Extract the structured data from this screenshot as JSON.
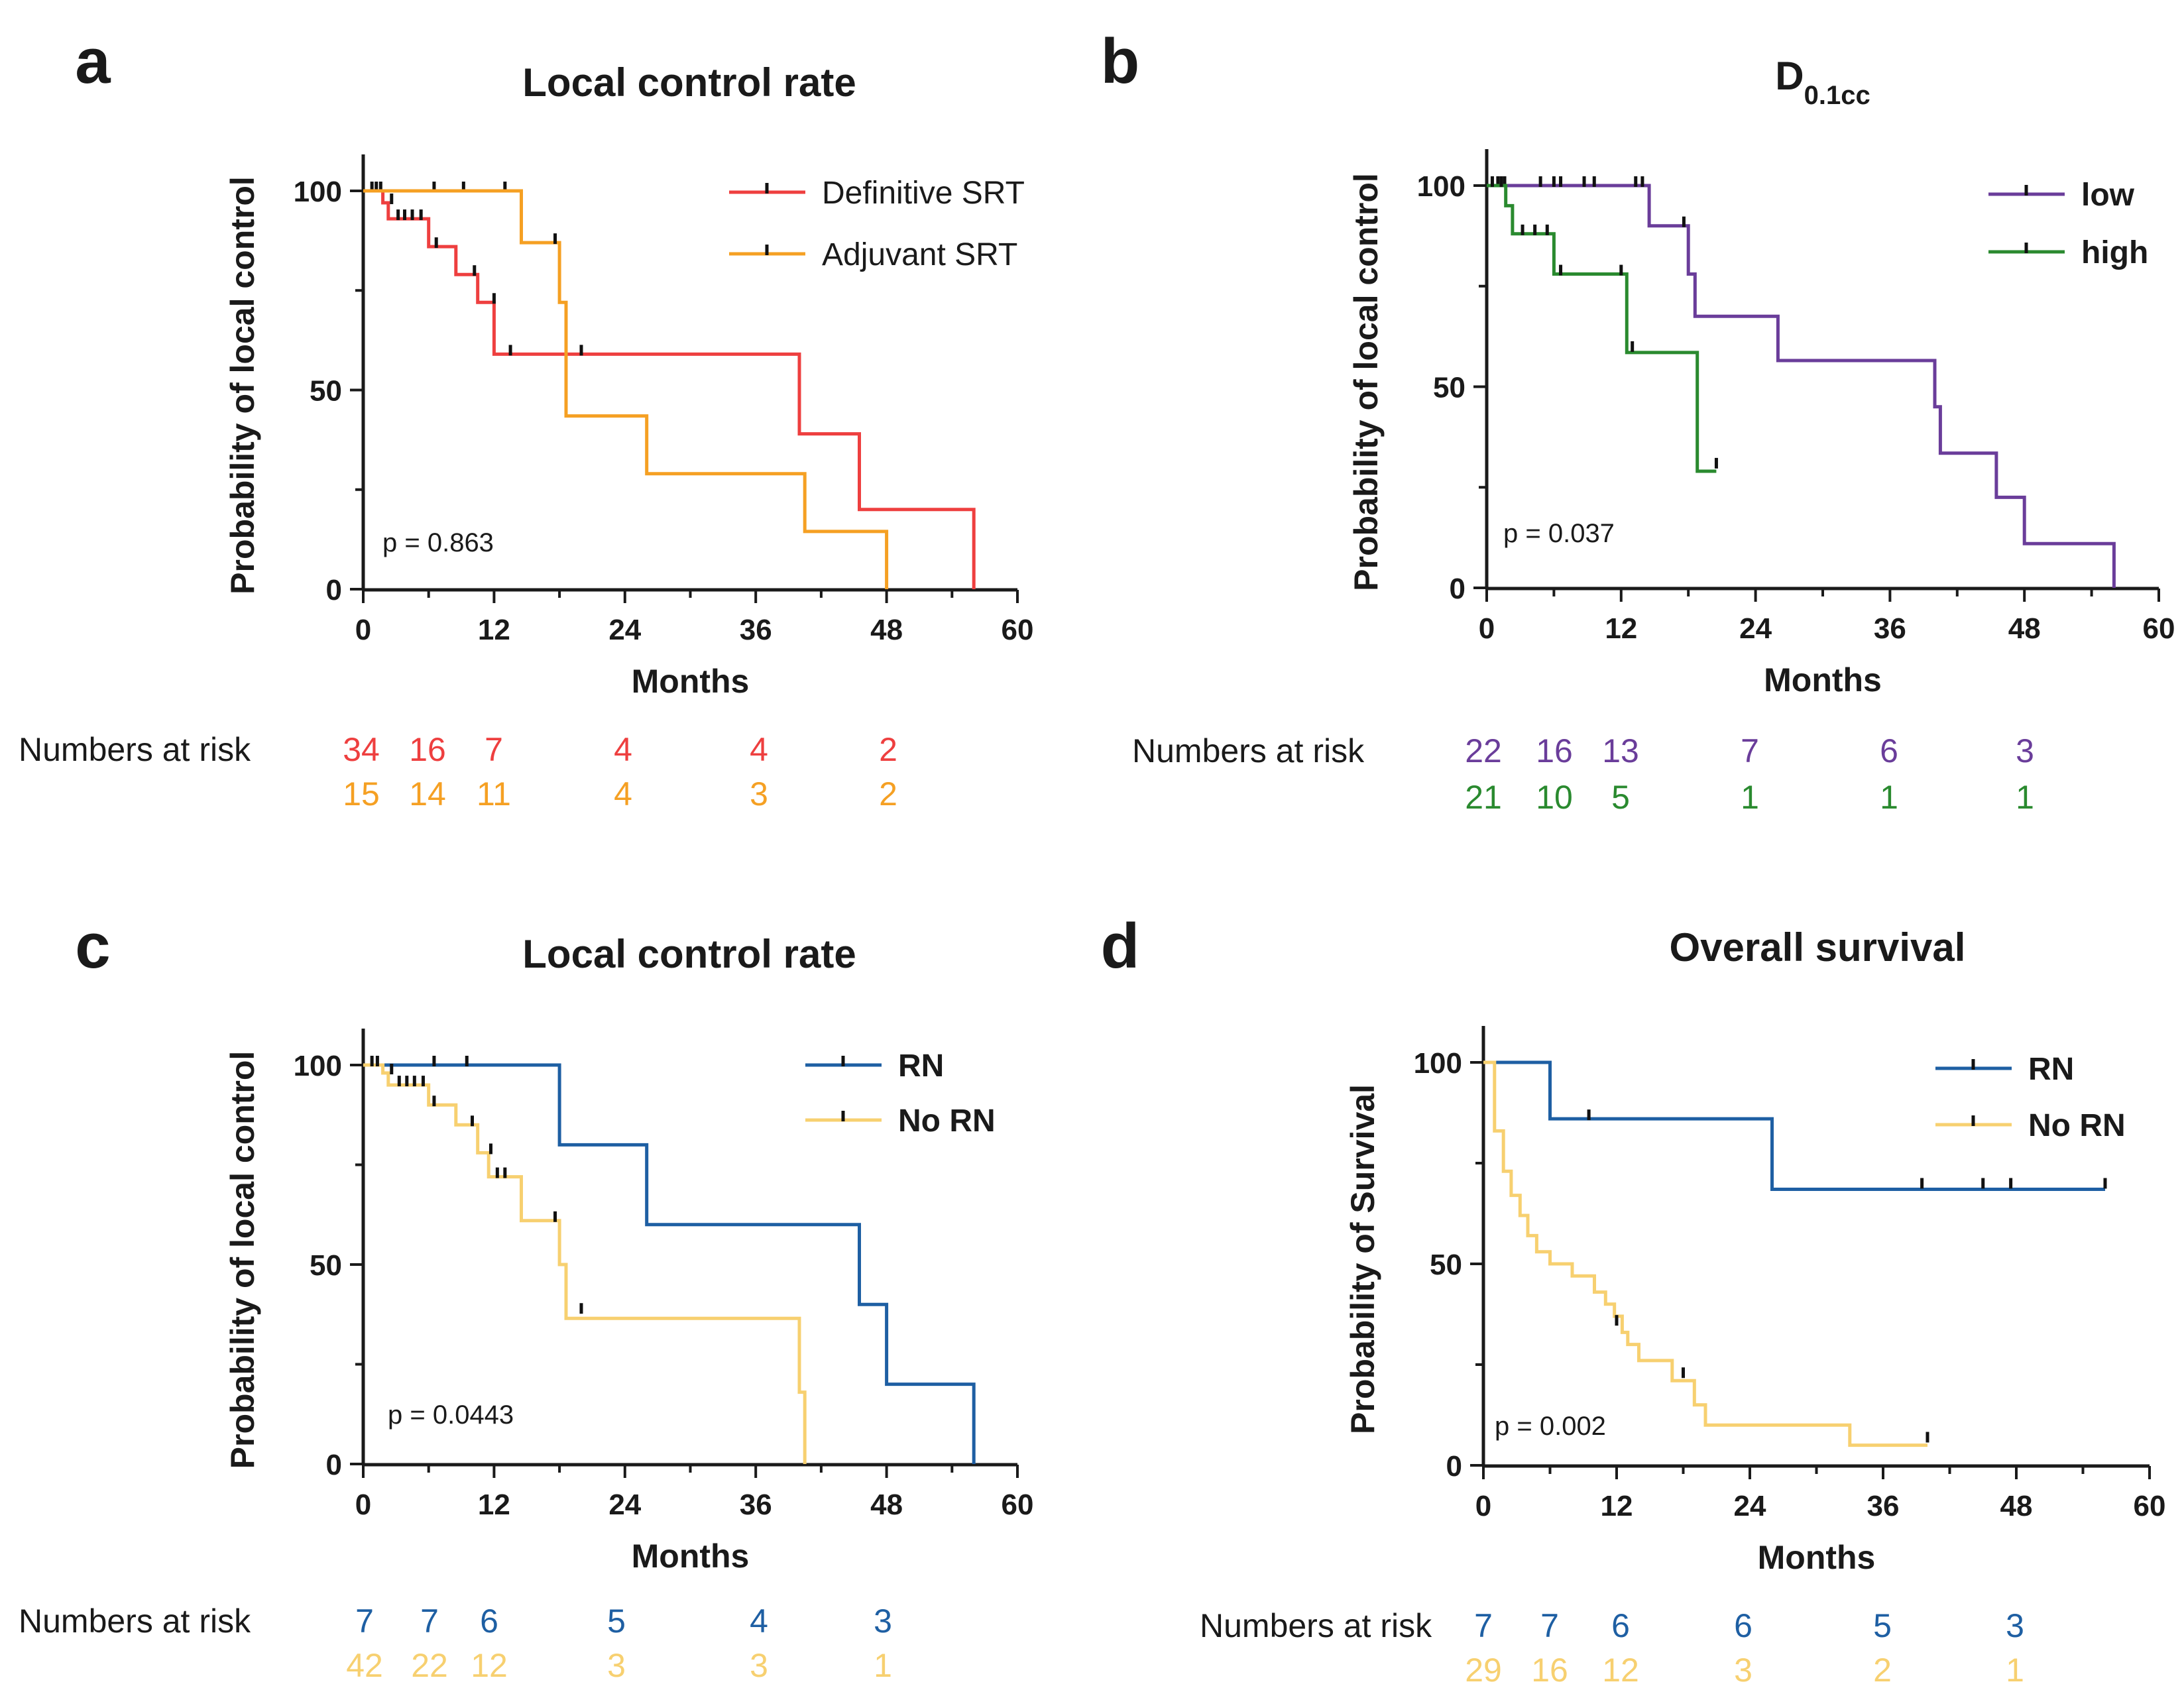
{
  "chart_data": [
    {
      "panel": "a",
      "type": "line",
      "title": "Local control rate",
      "xlabel": "Months",
      "ylabel": "Probability of local control",
      "xlim": [
        0,
        60
      ],
      "ylim": [
        0,
        100
      ],
      "xticks": [
        0,
        12,
        24,
        36,
        48,
        60
      ],
      "yticks": [
        0,
        50,
        100
      ],
      "p_value": "p = 0.863",
      "legend_bold": false,
      "series": [
        {
          "name": "Definitive SRT",
          "color": "#ee3f3f",
          "steps": [
            [
              0,
              100
            ],
            [
              1.8,
              100
            ],
            [
              1.8,
              97
            ],
            [
              2.3,
              97
            ],
            [
              2.3,
              93
            ],
            [
              6,
              93
            ],
            [
              6,
              86
            ],
            [
              8.5,
              86
            ],
            [
              8.5,
              79
            ],
            [
              10.5,
              79
            ],
            [
              10.5,
              72
            ],
            [
              12,
              72
            ],
            [
              12,
              59
            ],
            [
              40,
              59
            ],
            [
              40,
              39
            ],
            [
              45.5,
              39
            ],
            [
              45.5,
              20
            ],
            [
              56,
              20
            ],
            [
              56,
              0
            ]
          ],
          "censors": [
            [
              0.8,
              100
            ],
            [
              1.2,
              100
            ],
            [
              1.6,
              100
            ],
            [
              6.5,
              100
            ],
            [
              9.2,
              100
            ],
            [
              13,
              100
            ],
            [
              2.6,
              97
            ],
            [
              3.2,
              93
            ],
            [
              3.8,
              93
            ],
            [
              4.5,
              93
            ],
            [
              5.3,
              93
            ],
            [
              6.7,
              86
            ],
            [
              10.2,
              79
            ],
            [
              12,
              72
            ],
            [
              13.5,
              59
            ],
            [
              20,
              59
            ]
          ]
        },
        {
          "name": "Adjuvant SRT",
          "color": "#f5a023",
          "steps": [
            [
              0,
              100
            ],
            [
              14.5,
              100
            ],
            [
              14.5,
              87
            ],
            [
              18,
              87
            ],
            [
              18,
              72
            ],
            [
              18.6,
              72
            ],
            [
              18.6,
              43.5
            ],
            [
              26,
              43.5
            ],
            [
              26,
              29
            ],
            [
              40.5,
              29
            ],
            [
              40.5,
              14.5
            ],
            [
              48,
              14.5
            ],
            [
              48,
              0
            ]
          ],
          "censors": [
            [
              17.6,
              87
            ],
            [
              20,
              59
            ]
          ]
        }
      ],
      "risk_label": "Numbers at risk",
      "risk_rows": [
        {
          "color": "#ee3f3f",
          "values": [
            "34",
            "16",
            "7",
            "4",
            "4",
            "2"
          ]
        },
        {
          "color": "#f5a023",
          "values": [
            "15",
            "14",
            "11",
            "4",
            "3",
            "2"
          ]
        }
      ],
      "risk_x": [
        0,
        6,
        12,
        24,
        36,
        48
      ]
    },
    {
      "panel": "b",
      "type": "line",
      "title": "D",
      "title_sub": "0.1cc",
      "xlabel": "Months",
      "ylabel": "Probability of local control",
      "xlim": [
        0,
        60
      ],
      "ylim": [
        0,
        100
      ],
      "xticks": [
        0,
        12,
        24,
        36,
        48,
        60
      ],
      "yticks": [
        0,
        50,
        100
      ],
      "p_value": "p = 0.037",
      "legend_bold": true,
      "series": [
        {
          "name": "low",
          "color": "#6a3d9a",
          "steps": [
            [
              0,
              100
            ],
            [
              14.5,
              100
            ],
            [
              14.5,
              90
            ],
            [
              18,
              90
            ],
            [
              18,
              78
            ],
            [
              18.6,
              78
            ],
            [
              18.6,
              67.5
            ],
            [
              26,
              67.5
            ],
            [
              26,
              56.5
            ],
            [
              40,
              56.5
            ],
            [
              40,
              45
            ],
            [
              40.5,
              45
            ],
            [
              40.5,
              33.5
            ],
            [
              45.5,
              33.5
            ],
            [
              45.5,
              22.5
            ],
            [
              48,
              22.5
            ],
            [
              48,
              11
            ],
            [
              56,
              11
            ],
            [
              56,
              0
            ]
          ],
          "censors": [
            [
              1,
              100
            ],
            [
              1.6,
              100
            ],
            [
              4.8,
              100
            ],
            [
              6,
              100
            ],
            [
              6.6,
              100
            ],
            [
              8.7,
              100
            ],
            [
              9.6,
              100
            ],
            [
              13.3,
              100
            ],
            [
              13.9,
              100
            ],
            [
              17.6,
              90
            ]
          ]
        },
        {
          "name": "high",
          "color": "#2a8a2f",
          "steps": [
            [
              0,
              100
            ],
            [
              1.7,
              100
            ],
            [
              1.7,
              95
            ],
            [
              2.3,
              95
            ],
            [
              2.3,
              88
            ],
            [
              6,
              88
            ],
            [
              6,
              78
            ],
            [
              12.5,
              78
            ],
            [
              12.5,
              58.5
            ],
            [
              18.8,
              58.5
            ],
            [
              18.8,
              29
            ],
            [
              20.5,
              29
            ]
          ],
          "censors": [
            [
              0.5,
              100
            ],
            [
              1.3,
              100
            ],
            [
              3.2,
              88
            ],
            [
              4.3,
              88
            ],
            [
              5.4,
              88
            ],
            [
              6.6,
              78
            ],
            [
              12,
              78
            ],
            [
              13,
              59
            ],
            [
              20.5,
              30
            ]
          ]
        }
      ],
      "risk_label": "Numbers at risk",
      "risk_rows": [
        {
          "color": "#6a3d9a",
          "values": [
            "22",
            "16",
            "13",
            "7",
            "6",
            "3"
          ]
        },
        {
          "color": "#2a8a2f",
          "values": [
            "21",
            "10",
            "5",
            "1",
            "1",
            "1"
          ]
        }
      ],
      "risk_x": [
        0,
        6,
        12,
        24,
        36,
        48
      ]
    },
    {
      "panel": "c",
      "type": "line",
      "title": "Local control rate",
      "xlabel": "Months",
      "ylabel": "Probability of local control",
      "xlim": [
        0,
        60
      ],
      "ylim": [
        0,
        100
      ],
      "xticks": [
        0,
        12,
        24,
        36,
        48,
        60
      ],
      "yticks": [
        0,
        50,
        100
      ],
      "p_value": "p = 0.0443",
      "legend_bold": true,
      "series": [
        {
          "name": "RN",
          "color": "#1e5fa3",
          "steps": [
            [
              0,
              100
            ],
            [
              18,
              100
            ],
            [
              18,
              80
            ],
            [
              26,
              80
            ],
            [
              26,
              60
            ],
            [
              45.5,
              60
            ],
            [
              45.5,
              40
            ],
            [
              48,
              40
            ],
            [
              48,
              20
            ],
            [
              56,
              20
            ],
            [
              56,
              0
            ]
          ],
          "censors": [
            [
              6.5,
              100
            ]
          ]
        },
        {
          "name": "No RN",
          "color": "#f7d070",
          "steps": [
            [
              0,
              100
            ],
            [
              1.8,
              100
            ],
            [
              1.8,
              98
            ],
            [
              2.3,
              98
            ],
            [
              2.3,
              95
            ],
            [
              6,
              95
            ],
            [
              6,
              90
            ],
            [
              8.5,
              90
            ],
            [
              8.5,
              85
            ],
            [
              10.5,
              85
            ],
            [
              10.5,
              78
            ],
            [
              11.5,
              78
            ],
            [
              11.5,
              72
            ],
            [
              14.5,
              72
            ],
            [
              14.5,
              61
            ],
            [
              18,
              61
            ],
            [
              18,
              50
            ],
            [
              18.6,
              50
            ],
            [
              18.6,
              36.5
            ],
            [
              40,
              36.5
            ],
            [
              40,
              18
            ],
            [
              40.5,
              18
            ],
            [
              40.5,
              0
            ]
          ],
          "censors": [
            [
              0.8,
              100
            ],
            [
              1.3,
              100
            ],
            [
              9.5,
              100
            ],
            [
              2.6,
              98
            ],
            [
              3.3,
              95
            ],
            [
              4,
              95
            ],
            [
              4.7,
              95
            ],
            [
              5.5,
              95
            ],
            [
              6.5,
              90
            ],
            [
              10,
              85
            ],
            [
              11.7,
              78
            ],
            [
              12.3,
              72
            ],
            [
              13,
              72
            ],
            [
              17.6,
              61
            ],
            [
              20,
              38
            ]
          ]
        }
      ],
      "risk_label": "Numbers at risk",
      "risk_rows": [
        {
          "color": "#1e5fa3",
          "values": [
            "7",
            "7",
            "6",
            "5",
            "4",
            "3"
          ]
        },
        {
          "color": "#f7d070",
          "values": [
            "42",
            "22",
            "12",
            "3",
            "3",
            "1"
          ]
        }
      ],
      "risk_x": [
        0,
        6,
        12,
        24,
        36,
        48
      ]
    },
    {
      "panel": "d",
      "type": "line",
      "title": "Overall survival",
      "xlabel": "Months",
      "ylabel": "Probability of Survival",
      "xlim": [
        0,
        60
      ],
      "ylim": [
        0,
        100
      ],
      "xticks": [
        0,
        12,
        24,
        36,
        48,
        60
      ],
      "yticks": [
        0,
        50,
        100
      ],
      "p_value": "p = 0.002",
      "legend_bold": true,
      "series": [
        {
          "name": "RN",
          "color": "#1e5fa3",
          "steps": [
            [
              0,
              100
            ],
            [
              6,
              100
            ],
            [
              6,
              86
            ],
            [
              26,
              86
            ],
            [
              26,
              68.5
            ],
            [
              56,
              68.5
            ]
          ],
          "censors": [
            [
              9.5,
              86
            ],
            [
              39.5,
              69
            ],
            [
              45,
              69
            ],
            [
              47.5,
              69
            ],
            [
              56,
              69
            ]
          ]
        },
        {
          "name": "No RN",
          "color": "#f7d070",
          "steps": [
            [
              0,
              100
            ],
            [
              1,
              100
            ],
            [
              1,
              83
            ],
            [
              1.8,
              83
            ],
            [
              1.8,
              73
            ],
            [
              2.5,
              73
            ],
            [
              2.5,
              67
            ],
            [
              3.3,
              67
            ],
            [
              3.3,
              62
            ],
            [
              4,
              62
            ],
            [
              4,
              57
            ],
            [
              4.8,
              57
            ],
            [
              4.8,
              53
            ],
            [
              6,
              53
            ],
            [
              6,
              50
            ],
            [
              8,
              50
            ],
            [
              8,
              47
            ],
            [
              10,
              47
            ],
            [
              10,
              43
            ],
            [
              11,
              43
            ],
            [
              11,
              40
            ],
            [
              11.8,
              40
            ],
            [
              11.8,
              37
            ],
            [
              12.5,
              37
            ],
            [
              12.5,
              33
            ],
            [
              13,
              33
            ],
            [
              13,
              30
            ],
            [
              14,
              30
            ],
            [
              14,
              26
            ],
            [
              17,
              26
            ],
            [
              17,
              21
            ],
            [
              19,
              21
            ],
            [
              19,
              15
            ],
            [
              20,
              15
            ],
            [
              20,
              10
            ],
            [
              33,
              10
            ],
            [
              33,
              5
            ],
            [
              40,
              5
            ]
          ],
          "censors": [
            [
              12,
              35
            ],
            [
              18,
              22
            ],
            [
              40,
              6
            ]
          ]
        }
      ],
      "risk_label": "Numbers at risk",
      "risk_rows": [
        {
          "color": "#1e5fa3",
          "values": [
            "7",
            "7",
            "6",
            "6",
            "5",
            "3"
          ]
        },
        {
          "color": "#f7d070",
          "values": [
            "29",
            "16",
            "12",
            "3",
            "2",
            "1"
          ]
        }
      ],
      "risk_x": [
        0,
        6,
        12,
        24,
        36,
        48
      ]
    }
  ]
}
